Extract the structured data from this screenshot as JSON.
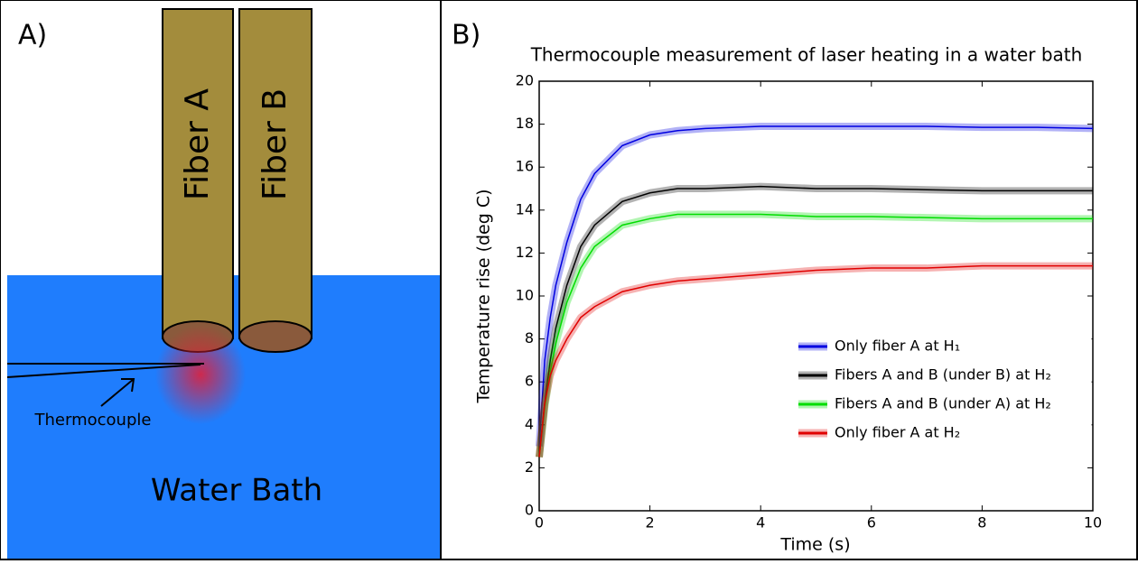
{
  "panel_a": {
    "label": "A)",
    "fiber_a": "Fiber A",
    "fiber_b": "Fiber B",
    "thermocouple": "Thermocouple",
    "water_bath": "Water Bath"
  },
  "chart_data": {
    "type": "line",
    "panel_label": "B)",
    "title": "Thermocouple measurement of laser heating in a water bath",
    "x_label": "Time (s)",
    "y_label": "Temperature rise (deg C)",
    "xlim": [
      0,
      10
    ],
    "xticks": [
      0,
      2,
      4,
      6,
      8,
      10
    ],
    "ylim": [
      0,
      20
    ],
    "yticks": [
      0,
      2,
      4,
      6,
      8,
      10,
      12,
      14,
      16,
      18,
      20
    ],
    "legend": "lower right",
    "x": [
      0,
      0.1,
      0.2,
      0.3,
      0.5,
      0.75,
      1,
      1.5,
      2,
      2.5,
      3,
      4,
      5,
      6,
      7,
      8,
      9,
      10
    ],
    "series": [
      {
        "name": "Only fiber A at H₁",
        "color": "#0000e0",
        "values": [
          3,
          7,
          9,
          10.5,
          12.5,
          14.5,
          15.7,
          17,
          17.5,
          17.7,
          17.8,
          17.9,
          17.9,
          17.9,
          17.9,
          17.85,
          17.85,
          17.8
        ]
      },
      {
        "name": "Fibers A and B (under B) at H₂",
        "color": "#000000",
        "values": [
          2.5,
          5,
          7,
          8.5,
          10.5,
          12.3,
          13.3,
          14.4,
          14.8,
          15,
          15,
          15.1,
          15,
          15,
          14.95,
          14.9,
          14.9,
          14.9
        ]
      },
      {
        "name": "Fibers A and B (under A) at H₂",
        "color": "#00dd00",
        "values": [
          2.5,
          4.8,
          6.5,
          7.8,
          9.7,
          11.3,
          12.3,
          13.3,
          13.6,
          13.8,
          13.8,
          13.8,
          13.7,
          13.7,
          13.65,
          13.6,
          13.6,
          13.6
        ]
      },
      {
        "name": "Only fiber A at H₂",
        "color": "#e00000",
        "values": [
          2.5,
          5,
          6.3,
          7,
          8,
          9,
          9.5,
          10.2,
          10.5,
          10.7,
          10.8,
          11,
          11.2,
          11.3,
          11.3,
          11.4,
          11.4,
          11.4
        ]
      }
    ]
  }
}
